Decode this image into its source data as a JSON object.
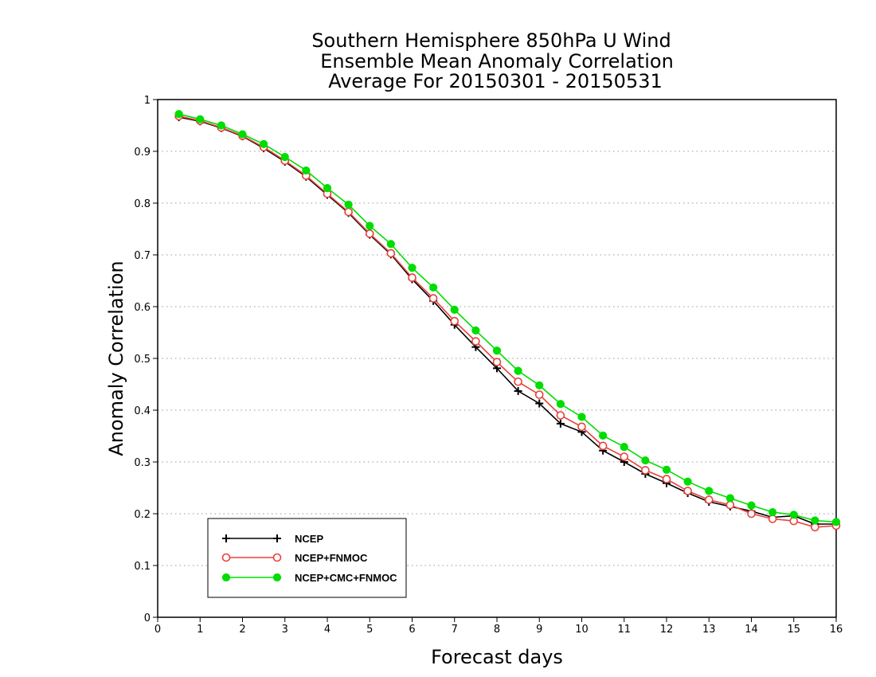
{
  "chart_data": {
    "type": "line",
    "title": [
      "Southern Hemisphere 850hPa U Wind",
      "Ensemble Mean Anomaly Correlation",
      "Average For 20150301 - 20150531"
    ],
    "xlabel": "Forecast days",
    "ylabel": "Anomaly Correlation",
    "xlim": [
      0,
      16
    ],
    "ylim": [
      0,
      1
    ],
    "x_ticks": [
      "0",
      "1",
      "2",
      "3",
      "4",
      "5",
      "6",
      "7",
      "8",
      "9",
      "10",
      "11",
      "12",
      "13",
      "14",
      "15",
      "16"
    ],
    "y_ticks": [
      "0",
      "0.1",
      "0.2",
      "0.3",
      "0.4",
      "0.5",
      "0.6",
      "0.7",
      "0.8",
      "0.9",
      "1"
    ],
    "grid": "horizontal dotted",
    "legend_position": "bottom-left",
    "x": [
      0.5,
      1,
      1.5,
      2,
      2.5,
      3,
      3.5,
      4,
      4.5,
      5,
      5.5,
      6,
      6.5,
      7,
      7.5,
      8,
      8.5,
      9,
      9.5,
      10,
      10.5,
      11,
      11.5,
      12,
      12.5,
      13,
      13.5,
      14,
      14.5,
      15,
      15.5,
      16
    ],
    "series": [
      {
        "name": "NCEP",
        "color": "#000000",
        "marker": "plus",
        "values": [
          0.966,
          0.958,
          0.945,
          0.929,
          0.906,
          0.88,
          0.851,
          0.816,
          0.781,
          0.739,
          0.701,
          0.653,
          0.611,
          0.565,
          0.522,
          0.481,
          0.437,
          0.413,
          0.374,
          0.358,
          0.322,
          0.3,
          0.277,
          0.259,
          0.24,
          0.223,
          0.214,
          0.205,
          0.193,
          0.196,
          0.18,
          0.18
        ]
      },
      {
        "name": "NCEP+FNMOC",
        "color": "#e8413c",
        "marker": "open-circle",
        "values": [
          0.968,
          0.959,
          0.946,
          0.93,
          0.908,
          0.882,
          0.853,
          0.818,
          0.783,
          0.741,
          0.703,
          0.656,
          0.616,
          0.572,
          0.533,
          0.493,
          0.455,
          0.43,
          0.39,
          0.368,
          0.331,
          0.31,
          0.284,
          0.267,
          0.244,
          0.227,
          0.217,
          0.2,
          0.19,
          0.186,
          0.174,
          0.177
        ]
      },
      {
        "name": "NCEP+CMC+FNMOC",
        "color": "#00dd00",
        "marker": "filled-circle",
        "values": [
          0.972,
          0.962,
          0.95,
          0.933,
          0.914,
          0.889,
          0.863,
          0.829,
          0.797,
          0.756,
          0.721,
          0.675,
          0.637,
          0.594,
          0.554,
          0.515,
          0.476,
          0.448,
          0.412,
          0.387,
          0.351,
          0.329,
          0.303,
          0.285,
          0.262,
          0.244,
          0.23,
          0.216,
          0.203,
          0.198,
          0.187,
          0.184
        ]
      }
    ]
  }
}
